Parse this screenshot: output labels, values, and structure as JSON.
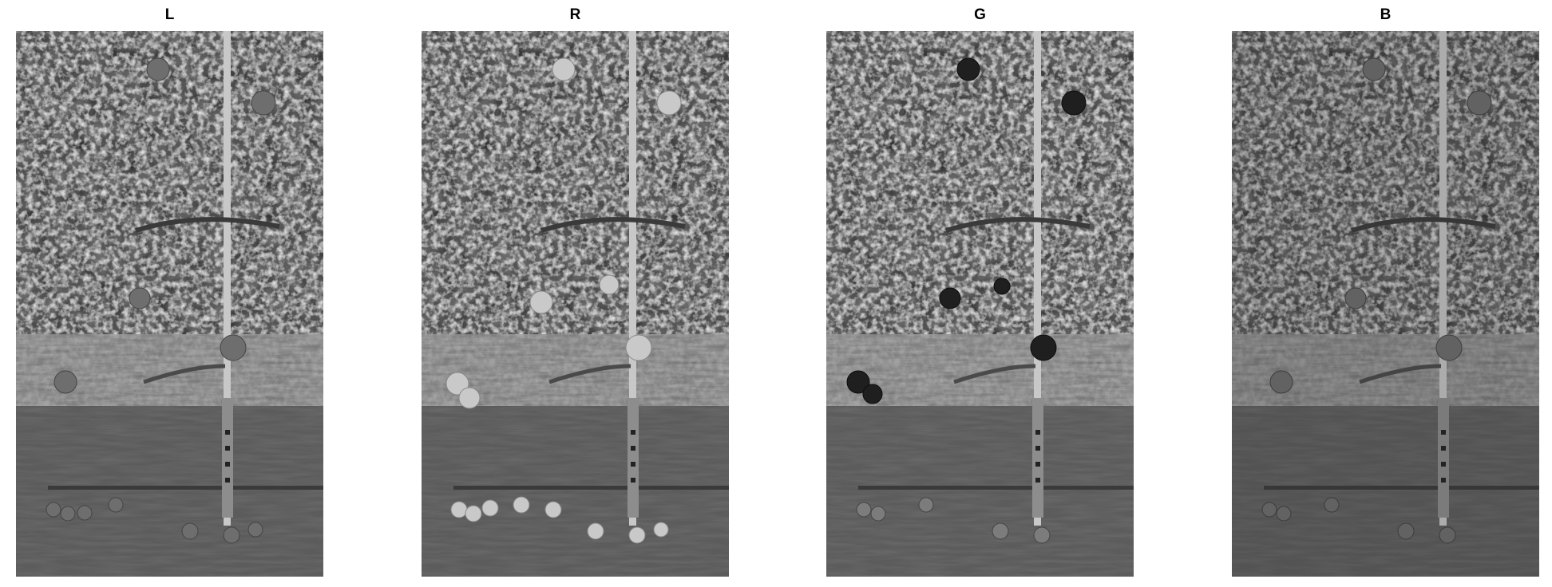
{
  "figure": {
    "panels": [
      {
        "title": "L"
      },
      {
        "title": "R"
      },
      {
        "title": "G"
      },
      {
        "title": "B"
      }
    ]
  }
}
